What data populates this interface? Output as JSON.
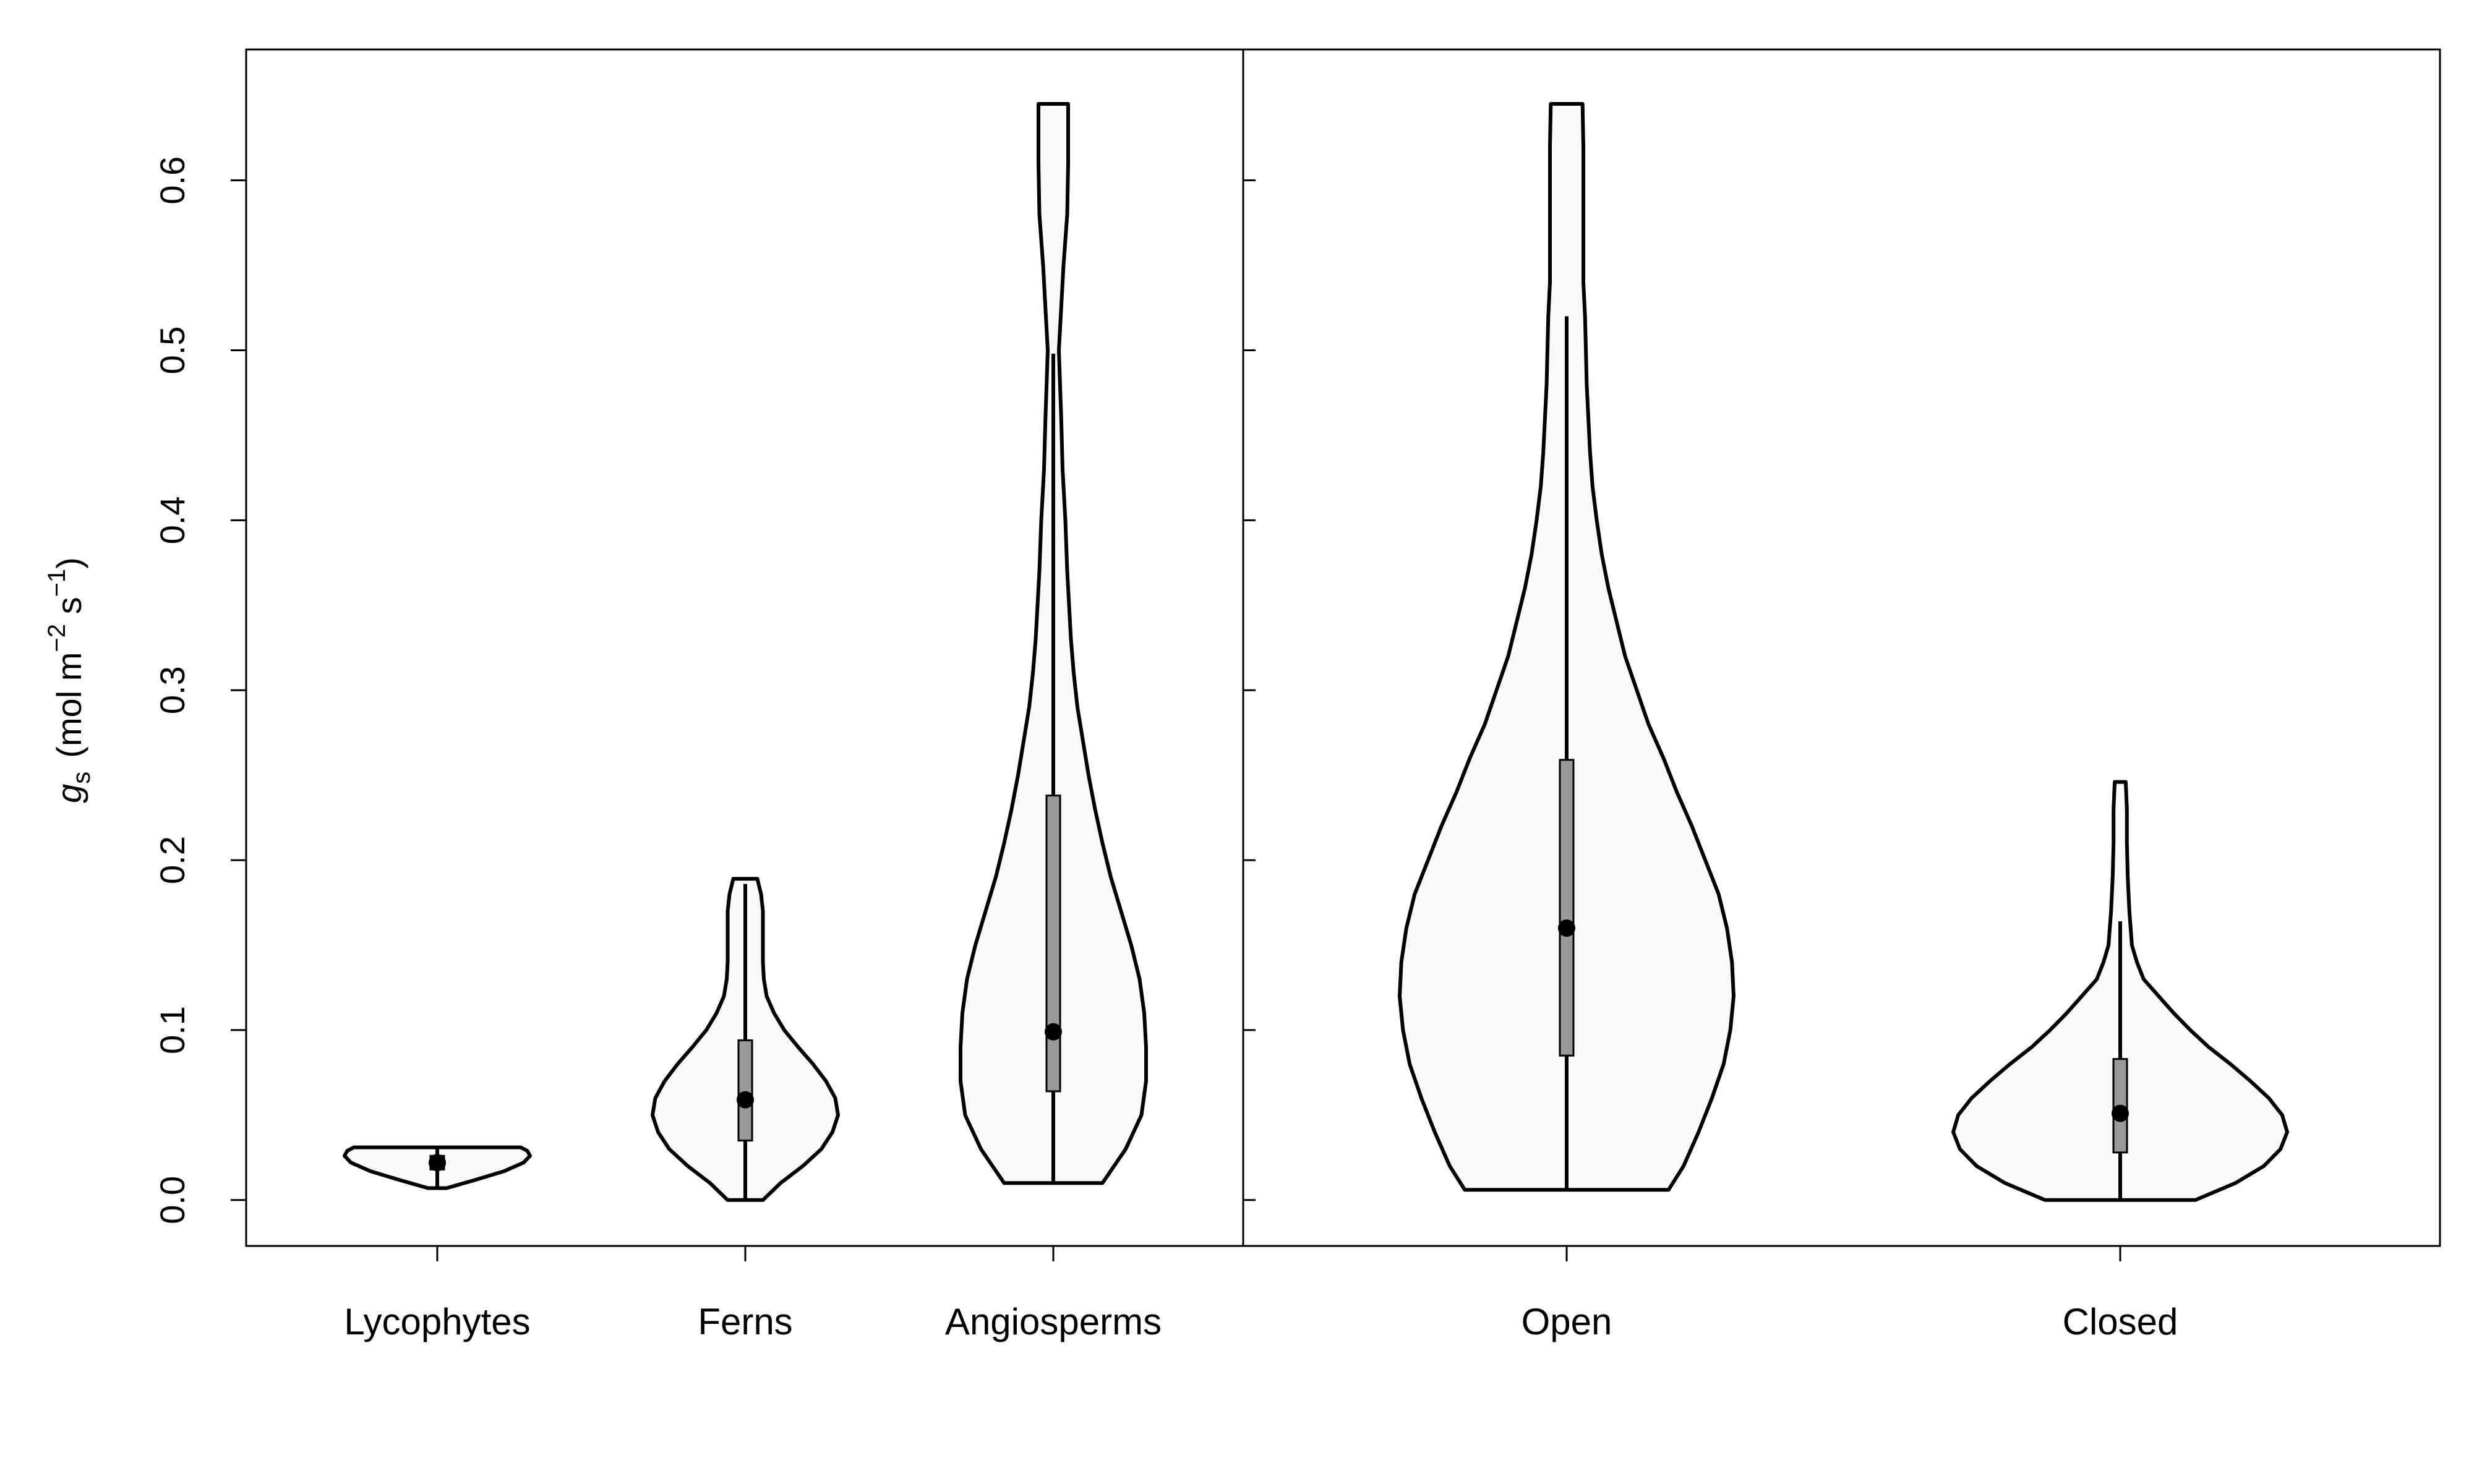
{
  "chart_data": {
    "type": "violin",
    "ylabel": {
      "symbol": "g",
      "subscript": "s",
      "units_open": "(mol m",
      "units_exp1": "−2",
      "units_mid": " s",
      "units_exp2": "−1",
      "units_close": ")"
    },
    "ylim": [
      -0.027,
      0.677
    ],
    "yticks": [
      "0.0",
      "0.1",
      "0.2",
      "0.3",
      "0.4",
      "0.5",
      "0.6"
    ],
    "grid": false,
    "legend": "none",
    "colors": {
      "fill": "#f9f9f9",
      "box": "#999999",
      "stroke": "#000000"
    },
    "panels": [
      {
        "groups": [
          {
            "category": "Lycophytes",
            "median": 0.022,
            "q1": 0.018,
            "q3": 0.026,
            "min": 0.007,
            "max": 0.031,
            "density": [
              [
                0.007,
                0.1
              ],
              [
                0.012,
                0.42
              ],
              [
                0.017,
                0.72
              ],
              [
                0.022,
                0.93
              ],
              [
                0.026,
                1.0
              ],
              [
                0.029,
                0.97
              ],
              [
                0.031,
                0.9
              ]
            ]
          },
          {
            "category": "Ferns",
            "median": 0.059,
            "q1": 0.035,
            "q3": 0.094,
            "min": 0.0,
            "max": 0.186,
            "density": [
              [
                0.0,
                0.19
              ],
              [
                0.01,
                0.38
              ],
              [
                0.02,
                0.62
              ],
              [
                0.03,
                0.82
              ],
              [
                0.04,
                0.94
              ],
              [
                0.05,
                1.0
              ],
              [
                0.06,
                0.97
              ],
              [
                0.07,
                0.87
              ],
              [
                0.08,
                0.73
              ],
              [
                0.09,
                0.57
              ],
              [
                0.1,
                0.42
              ],
              [
                0.11,
                0.31
              ],
              [
                0.12,
                0.23
              ],
              [
                0.13,
                0.2
              ],
              [
                0.14,
                0.19
              ],
              [
                0.15,
                0.19
              ],
              [
                0.16,
                0.19
              ],
              [
                0.17,
                0.19
              ],
              [
                0.18,
                0.17
              ],
              [
                0.189,
                0.13
              ]
            ]
          },
          {
            "category": "Angiosperms",
            "median": 0.099,
            "q1": 0.064,
            "q3": 0.238,
            "min": 0.01,
            "max": 0.498,
            "density": [
              [
                0.01,
                0.53
              ],
              [
                0.03,
                0.78
              ],
              [
                0.05,
                0.95
              ],
              [
                0.07,
                1.0
              ],
              [
                0.09,
                1.0
              ],
              [
                0.11,
                0.98
              ],
              [
                0.13,
                0.93
              ],
              [
                0.15,
                0.84
              ],
              [
                0.17,
                0.73
              ],
              [
                0.19,
                0.62
              ],
              [
                0.21,
                0.53
              ],
              [
                0.23,
                0.45
              ],
              [
                0.25,
                0.38
              ],
              [
                0.27,
                0.32
              ],
              [
                0.29,
                0.26
              ],
              [
                0.31,
                0.22
              ],
              [
                0.33,
                0.19
              ],
              [
                0.35,
                0.17
              ],
              [
                0.37,
                0.15
              ],
              [
                0.4,
                0.13
              ],
              [
                0.43,
                0.1
              ],
              [
                0.46,
                0.085
              ],
              [
                0.5,
                0.06
              ],
              [
                0.55,
                0.11
              ],
              [
                0.58,
                0.15
              ],
              [
                0.61,
                0.16
              ],
              [
                0.645,
                0.16
              ]
            ]
          }
        ]
      },
      {
        "groups": [
          {
            "category": "Open",
            "median": 0.16,
            "q1": 0.085,
            "q3": 0.259,
            "min": 0.006,
            "max": 0.52,
            "density": [
              [
                0.006,
                0.61
              ],
              [
                0.02,
                0.7
              ],
              [
                0.04,
                0.79
              ],
              [
                0.06,
                0.87
              ],
              [
                0.08,
                0.94
              ],
              [
                0.1,
                0.98
              ],
              [
                0.12,
                1.0
              ],
              [
                0.14,
                0.99
              ],
              [
                0.16,
                0.96
              ],
              [
                0.18,
                0.91
              ],
              [
                0.2,
                0.83
              ],
              [
                0.22,
                0.75
              ],
              [
                0.24,
                0.66
              ],
              [
                0.26,
                0.58
              ],
              [
                0.28,
                0.49
              ],
              [
                0.3,
                0.42
              ],
              [
                0.32,
                0.35
              ],
              [
                0.34,
                0.3
              ],
              [
                0.36,
                0.25
              ],
              [
                0.38,
                0.21
              ],
              [
                0.4,
                0.18
              ],
              [
                0.42,
                0.155
              ],
              [
                0.44,
                0.14
              ],
              [
                0.46,
                0.13
              ],
              [
                0.48,
                0.12
              ],
              [
                0.5,
                0.115
              ],
              [
                0.52,
                0.11
              ],
              [
                0.54,
                0.1
              ],
              [
                0.56,
                0.1
              ],
              [
                0.58,
                0.1
              ],
              [
                0.6,
                0.1
              ],
              [
                0.62,
                0.1
              ],
              [
                0.645,
                0.095
              ]
            ]
          },
          {
            "category": "Closed",
            "median": 0.051,
            "q1": 0.028,
            "q3": 0.083,
            "min": 0.0,
            "max": 0.164,
            "density": [
              [
                0.0,
                0.45
              ],
              [
                0.01,
                0.69
              ],
              [
                0.02,
                0.86
              ],
              [
                0.03,
                0.96
              ],
              [
                0.04,
                1.0
              ],
              [
                0.05,
                0.97
              ],
              [
                0.06,
                0.89
              ],
              [
                0.07,
                0.78
              ],
              [
                0.08,
                0.66
              ],
              [
                0.09,
                0.53
              ],
              [
                0.1,
                0.42
              ],
              [
                0.11,
                0.32
              ],
              [
                0.12,
                0.23
              ],
              [
                0.13,
                0.14
              ],
              [
                0.14,
                0.1
              ],
              [
                0.15,
                0.07
              ],
              [
                0.17,
                0.055
              ],
              [
                0.19,
                0.045
              ],
              [
                0.21,
                0.04
              ],
              [
                0.23,
                0.04
              ],
              [
                0.246,
                0.033
              ]
            ]
          }
        ]
      }
    ]
  }
}
